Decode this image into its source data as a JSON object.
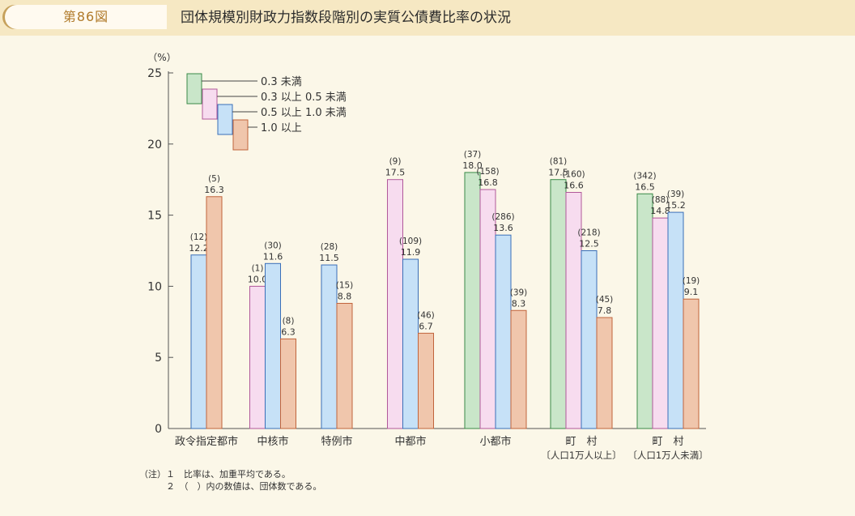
{
  "header": {
    "figure_number": "第86図",
    "title": "団体規模別財政力指数段階別の実質公債費比率の状況"
  },
  "notes": [
    "（注）１　比率は、加重平均である。",
    "　　　２　（　）内の数値は、団体数である。"
  ],
  "colors": {
    "s1": "#c9e6c9",
    "s2": "#f7dcef",
    "s3": "#c6e1f7",
    "s4": "#f0c6ac",
    "outline_s1": "#3a8a48",
    "outline_s2": "#b0589a",
    "outline_s3": "#3a6fb8",
    "outline_s4": "#c0643c"
  },
  "chart_data": {
    "type": "bar",
    "ylabel": "（%）",
    "ylim": [
      0,
      25
    ],
    "yticks": [
      0,
      5,
      10,
      15,
      20,
      25
    ],
    "legend_position": "top-left",
    "categories": [
      {
        "label": "政令指定都市",
        "sub": ""
      },
      {
        "label": "中核市",
        "sub": ""
      },
      {
        "label": "特例市",
        "sub": ""
      },
      {
        "label": "中都市",
        "sub": ""
      },
      {
        "label": "小都市",
        "sub": ""
      },
      {
        "label": "町　村",
        "sub": "〔人口1万人以上〕"
      },
      {
        "label": "町　村",
        "sub": "〔人口1万人未満〕"
      }
    ],
    "series": [
      {
        "name": "0.3 未満",
        "values": [
          null,
          null,
          null,
          null,
          18.0,
          17.5,
          16.5
        ],
        "counts": [
          null,
          null,
          null,
          null,
          "(37)",
          "(81)",
          "(342)"
        ]
      },
      {
        "name": "0.3 以上 0.5 未満",
        "values": [
          null,
          10.0,
          null,
          17.5,
          16.8,
          16.6,
          14.8
        ],
        "counts": [
          null,
          "(1)",
          null,
          "(9)",
          "(158)",
          "(160)",
          "(88)"
        ]
      },
      {
        "name": "0.5 以上 1.0 未満",
        "values": [
          12.2,
          11.6,
          11.5,
          11.9,
          13.6,
          12.5,
          15.2
        ],
        "counts": [
          "(12)",
          "(30)",
          "(28)",
          "(109)",
          "(286)",
          "(218)",
          "(39)"
        ]
      },
      {
        "name": "1.0 以上",
        "values": [
          16.3,
          6.3,
          8.8,
          6.7,
          8.3,
          7.8,
          9.1
        ],
        "counts": [
          "(5)",
          "(8)",
          "(15)",
          "(46)",
          "(39)",
          "(45)",
          "(19)"
        ]
      }
    ]
  }
}
